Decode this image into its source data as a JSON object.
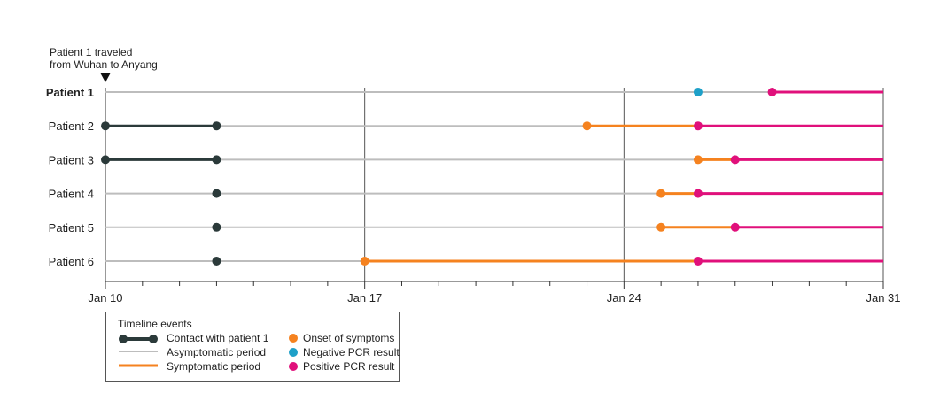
{
  "chart_data": {
    "type": "timeline",
    "annotation": {
      "text_line1": "Patient 1 traveled",
      "text_line2": "from Wuhan to Anyang",
      "day": 10
    },
    "x_axis": {
      "unit": "day of January",
      "range": [
        10,
        31
      ],
      "tick_labels": [
        {
          "day": 10,
          "label": "Jan 10"
        },
        {
          "day": 17,
          "label": "Jan 17"
        },
        {
          "day": 24,
          "label": "Jan 24"
        },
        {
          "day": 31,
          "label": "Jan 31"
        }
      ],
      "gridlines_at": [
        17,
        24,
        31
      ]
    },
    "patients": [
      {
        "label": "Patient 1",
        "bold": true,
        "contact": null,
        "asymptomatic": [
          10,
          28
        ],
        "symptomatic": null,
        "onset": null,
        "negative_pcr": 26,
        "positive_pcr": 28,
        "positive_through": 31
      },
      {
        "label": "Patient 2",
        "bold": false,
        "contact": [
          10,
          13
        ],
        "asymptomatic": [
          10,
          23
        ],
        "symptomatic": [
          23,
          26
        ],
        "onset": 23,
        "negative_pcr": null,
        "positive_pcr": 26,
        "positive_through": 31
      },
      {
        "label": "Patient 3",
        "bold": false,
        "contact": [
          10,
          13
        ],
        "asymptomatic": [
          10,
          26
        ],
        "symptomatic": [
          26,
          27
        ],
        "onset": 26,
        "negative_pcr": null,
        "positive_pcr": 27,
        "positive_through": 31
      },
      {
        "label": "Patient 4",
        "bold": false,
        "contact": [
          13,
          13
        ],
        "asymptomatic": [
          10,
          25
        ],
        "symptomatic": [
          25,
          26
        ],
        "onset": 25,
        "negative_pcr": null,
        "positive_pcr": 26,
        "positive_through": 31
      },
      {
        "label": "Patient 5",
        "bold": false,
        "contact": [
          13,
          13
        ],
        "asymptomatic": [
          10,
          25
        ],
        "symptomatic": [
          25,
          27
        ],
        "onset": 25,
        "negative_pcr": null,
        "positive_pcr": 27,
        "positive_through": 31
      },
      {
        "label": "Patient 6",
        "bold": false,
        "contact": [
          13,
          13
        ],
        "asymptomatic": [
          10,
          17
        ],
        "symptomatic": [
          17,
          26
        ],
        "onset": 17,
        "negative_pcr": null,
        "positive_pcr": 26,
        "positive_through": 31
      }
    ],
    "legend": {
      "title": "Timeline events",
      "items": [
        {
          "key": "contact",
          "label": "Contact with patient 1"
        },
        {
          "key": "asymptomatic",
          "label": "Asymptomatic period"
        },
        {
          "key": "symptomatic",
          "label": "Symptomatic period"
        },
        {
          "key": "onset",
          "label": "Onset of symptoms"
        },
        {
          "key": "negative",
          "label": "Negative PCR result"
        },
        {
          "key": "positive",
          "label": "Positive PCR result"
        }
      ]
    },
    "colors": {
      "contact": "#2b3a3a",
      "asymptomatic": "#bdbdbd",
      "symptomatic": "#f5821f",
      "onset": "#f5821f",
      "negative": "#1ea0c8",
      "positive": "#e0107b",
      "grid": "#555555",
      "axis": "#333333"
    }
  }
}
